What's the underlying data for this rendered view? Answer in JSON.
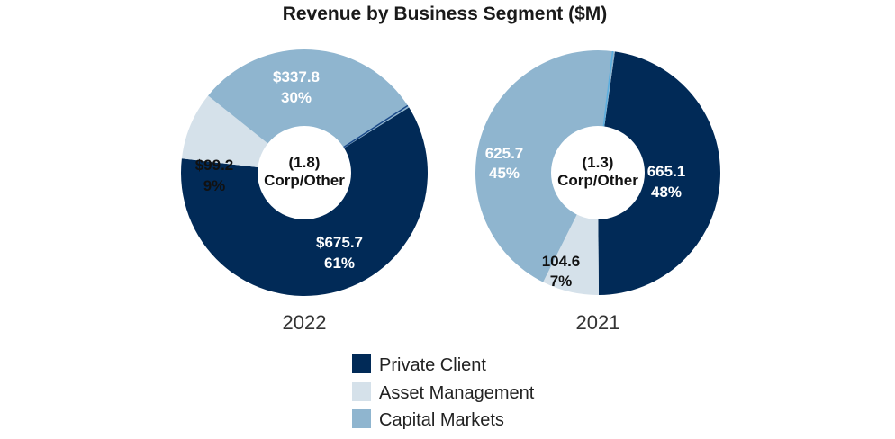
{
  "chart_data": {
    "type": "pie",
    "title": "Revenue by Business Segment ($M)",
    "legend_position": "bottom-center",
    "colors": {
      "Private Client": "#012a57",
      "Asset Management": "#d5e1ea",
      "Capital Markets": "#8fb5cf",
      "Corp/Other": "#1b4a8a"
    },
    "legend": [
      "Private Client",
      "Asset Management",
      "Capital Markets"
    ],
    "charts": [
      {
        "year": "2022",
        "center_value": "(1.8)",
        "center_label": "Corp/Other",
        "slices": [
          {
            "name": "Private Client",
            "value": 675.7,
            "value_label": "$675.7",
            "pct_label": "61%"
          },
          {
            "name": "Asset Management",
            "value": 99.2,
            "value_label": "$99.2",
            "pct_label": "9%"
          },
          {
            "name": "Capital Markets",
            "value": 337.8,
            "value_label": "$337.8",
            "pct_label": "30%"
          },
          {
            "name": "Corp/Other",
            "value": -1.8
          }
        ]
      },
      {
        "year": "2021",
        "center_value": "(1.3)",
        "center_label": "Corp/Other",
        "slices": [
          {
            "name": "Private Client",
            "value": 665.1,
            "value_label": "665.1",
            "pct_label": "48%"
          },
          {
            "name": "Asset Management",
            "value": 104.6,
            "value_label": "104.6",
            "pct_label": "7%"
          },
          {
            "name": "Capital Markets",
            "value": 625.7,
            "value_label": "625.7",
            "pct_label": "45%"
          },
          {
            "name": "Corp/Other",
            "value": -1.3
          }
        ]
      }
    ]
  }
}
